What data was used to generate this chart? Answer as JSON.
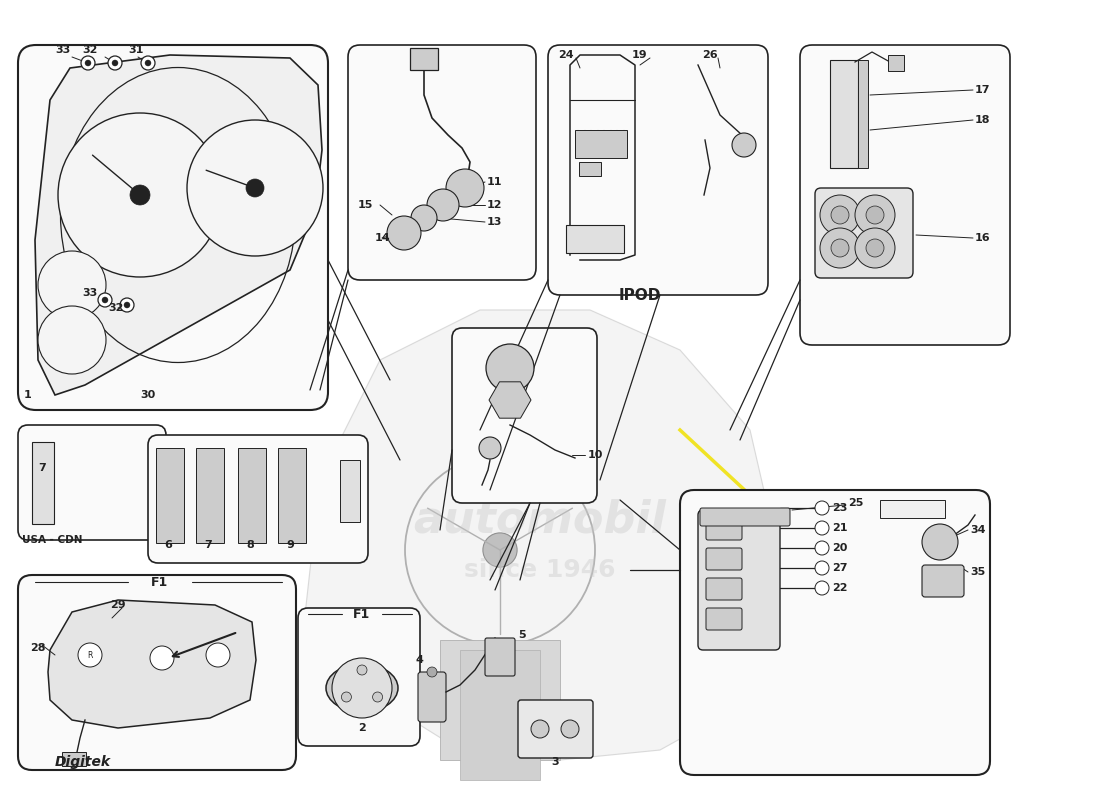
{
  "fig_w": 11.0,
  "fig_h": 8.0,
  "dpi": 100,
  "bg": "#ffffff",
  "lc": "#222222",
  "lc_light": "#888888",
  "fc_box": "#fafafa",
  "fc_part": "#e8e8e8",
  "fc_dark": "#cccccc",
  "yellow": "#f0e000",
  "watermark1": "automobil",
  "watermark2": "since 1946",
  "ipod_text": "IPOD",
  "usa_cdn_text": "USA - CDN",
  "digitek_text": "Digitek",
  "f1_text": "F1"
}
